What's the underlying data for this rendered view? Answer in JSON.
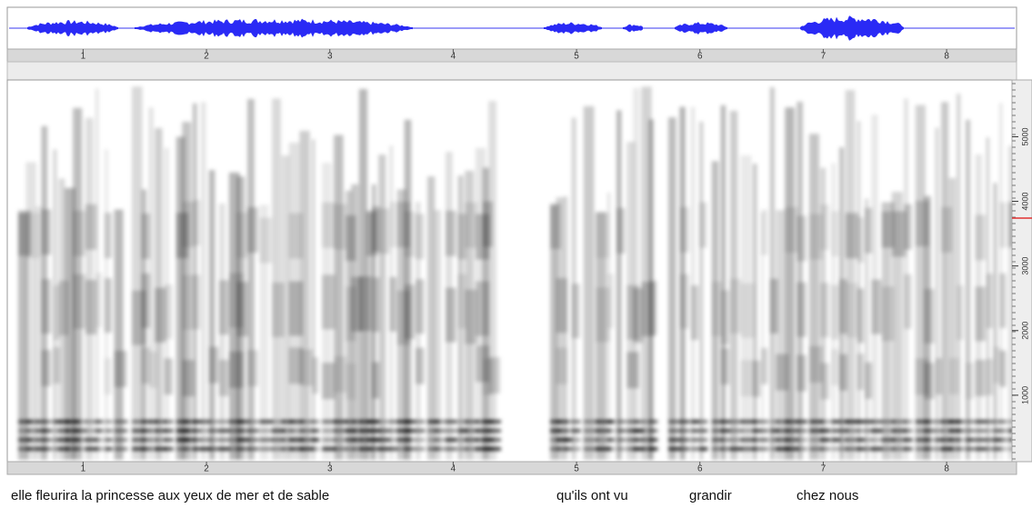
{
  "time_axis": {
    "xlim": [
      0.4,
      8.53
    ],
    "ticks": [
      1,
      2,
      3,
      4,
      5,
      6,
      7,
      8
    ]
  },
  "frequency_axis": {
    "ylim": [
      0,
      5850
    ],
    "ticks": [
      1000,
      2000,
      3000,
      4000,
      5000
    ]
  },
  "transcript": [
    "elle fleurira la princesse aux yeux de mer et de sable",
    "qu'ils ont vu",
    "grandir",
    "chez nous"
  ]
}
